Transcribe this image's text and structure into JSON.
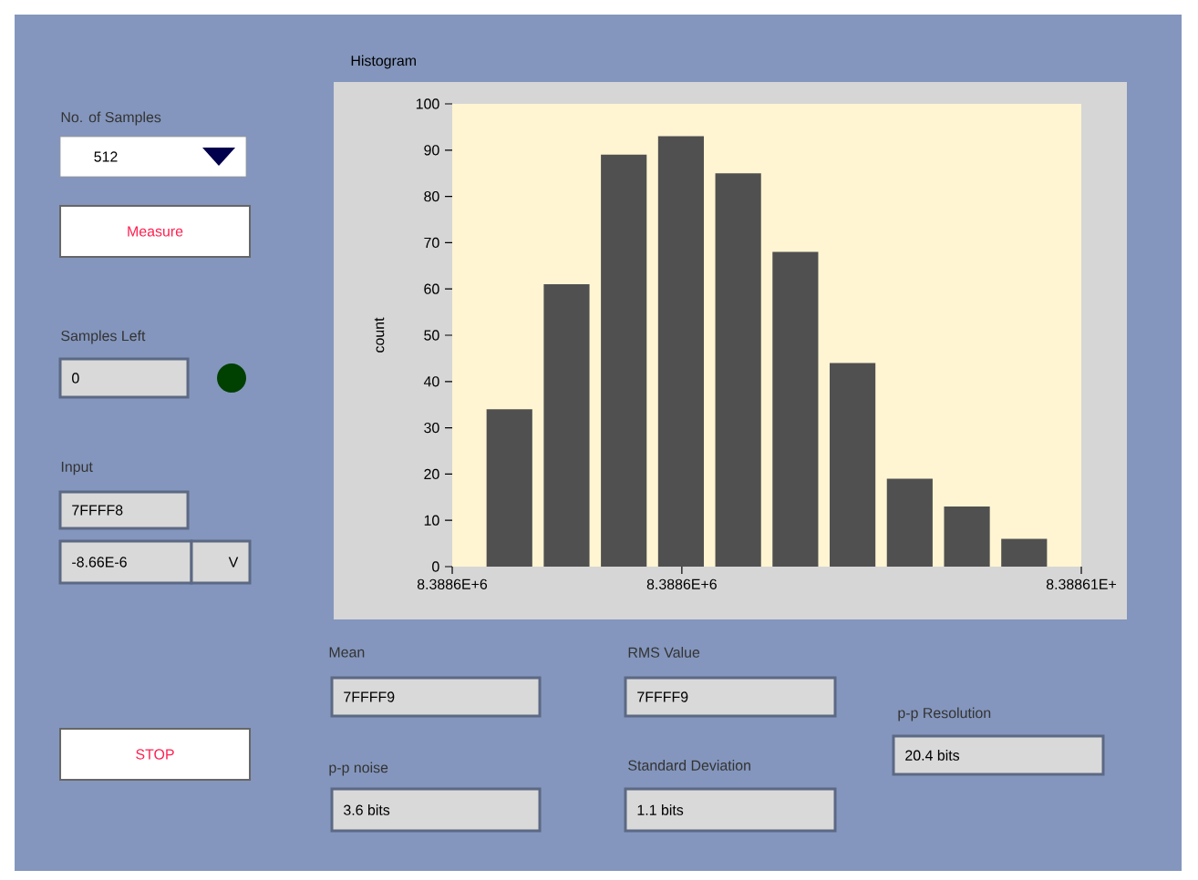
{
  "chart_data": [
    {
      "type": "bar",
      "title": "Histogram",
      "ylabel": "count",
      "categories": [
        null,
        null,
        null,
        null,
        null,
        null,
        null,
        null,
        null,
        null
      ],
      "values": [
        34,
        61,
        89,
        93,
        85,
        68,
        44,
        19,
        13,
        6
      ],
      "color": "#505050",
      "ylim": [
        0,
        100
      ],
      "yticks": [
        0,
        10,
        20,
        30,
        40,
        50,
        60,
        70,
        80,
        90,
        100
      ],
      "annotations": [
        "8.3886E+6",
        "8.3886E+6",
        "8.38861E+"
      ]
    },
    {
      "type": "other",
      "annotations": [
        "No. of Samples",
        "512",
        "Measure",
        "Samples Left",
        "0",
        "Input",
        "7FFFF8",
        "-8.66E-6",
        "V",
        "STOP",
        "Mean",
        "7FFFF9",
        "RMS Value",
        "7FFFF9",
        "p-p noise",
        "3.6 bits",
        "Standard Deviation",
        "1.1 bits",
        "p-p Resolution",
        "20.4 bits"
      ]
    }
  ]
}
